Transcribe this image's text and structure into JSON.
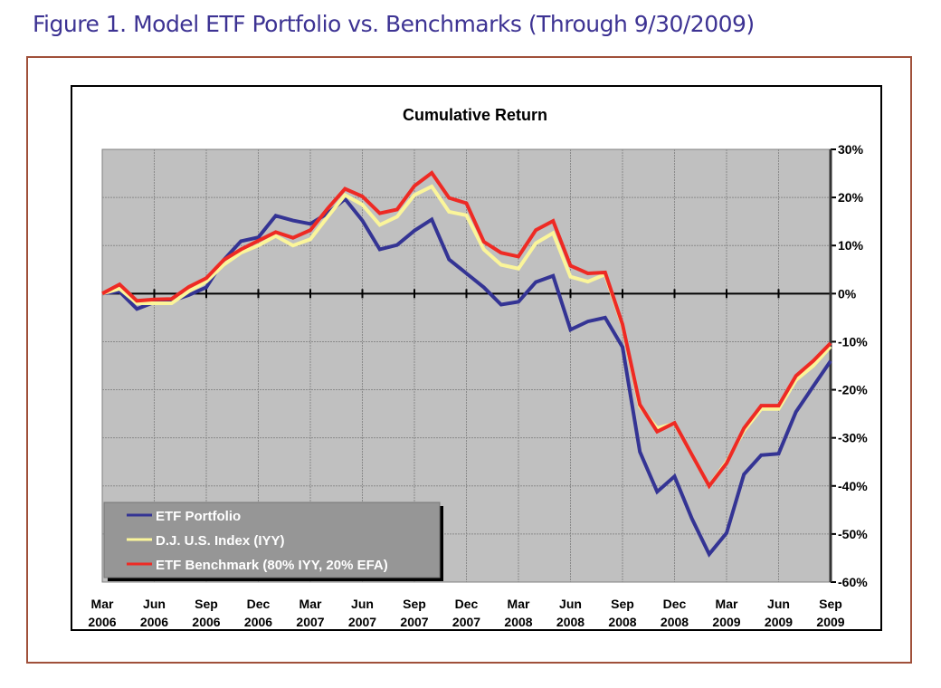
{
  "figure_title": "Figure 1. Model ETF Portfolio vs. Benchmarks (Through 9/30/2009)",
  "chart_data": {
    "type": "line",
    "title": "Cumulative Return",
    "xlabel": "",
    "ylabel": "",
    "ylim": [
      -60,
      30
    ],
    "y_ticks": [
      30,
      20,
      10,
      0,
      -10,
      -20,
      -30,
      -40,
      -50,
      -60
    ],
    "y_tick_labels": [
      "30%",
      "20%",
      "10%",
      "0%",
      "-10%",
      "-20%",
      "-30%",
      "-40%",
      "-50%",
      "-60%"
    ],
    "y_axis_side": "right",
    "x_tick_labels": [
      [
        "Mar",
        "2006"
      ],
      [
        "Jun",
        "2006"
      ],
      [
        "Sep",
        "2006"
      ],
      [
        "Dec",
        "2006"
      ],
      [
        "Mar",
        "2007"
      ],
      [
        "Jun",
        "2007"
      ],
      [
        "Sep",
        "2007"
      ],
      [
        "Dec",
        "2007"
      ],
      [
        "Mar",
        "2008"
      ],
      [
        "Jun",
        "2008"
      ],
      [
        "Sep",
        "2008"
      ],
      [
        "Dec",
        "2008"
      ],
      [
        "Mar",
        "2009"
      ],
      [
        "Jun",
        "2009"
      ],
      [
        "Sep",
        "2009"
      ]
    ],
    "x": [
      "2006-03",
      "2006-04",
      "2006-05",
      "2006-06",
      "2006-07",
      "2006-08",
      "2006-09",
      "2006-10",
      "2006-11",
      "2006-12",
      "2007-01",
      "2007-02",
      "2007-03",
      "2007-04",
      "2007-05",
      "2007-06",
      "2007-07",
      "2007-08",
      "2007-09",
      "2007-10",
      "2007-11",
      "2007-12",
      "2008-01",
      "2008-02",
      "2008-03",
      "2008-04",
      "2008-05",
      "2008-06",
      "2008-07",
      "2008-08",
      "2008-09",
      "2008-10",
      "2008-11",
      "2008-12",
      "2009-01",
      "2009-02",
      "2009-03",
      "2009-04",
      "2009-05",
      "2009-06",
      "2009-07",
      "2009-08",
      "2009-09"
    ],
    "grid": true,
    "legend_placement": "bottom-left",
    "background_color": "#c0c0c0",
    "series": [
      {
        "name": "ETF Portfolio",
        "color": "#343494",
        "values": [
          0,
          0.4,
          -3.2,
          -1.8,
          -1.5,
          -0.3,
          1.3,
          7,
          10.9,
          11.7,
          16.2,
          15.2,
          14.5,
          16.7,
          19.7,
          15.2,
          9.2,
          10.1,
          13.1,
          15.4,
          7.1,
          4.2,
          1.3,
          -2.3,
          -1.7,
          2.4,
          3.7,
          -7.5,
          -5.8,
          -5,
          -11.1,
          -32.9,
          -41.2,
          -38,
          -46.8,
          -54.2,
          -49.8,
          -37.6,
          -33.6,
          -33.3,
          -24.6,
          -19.3,
          -14
        ]
      },
      {
        "name": "D.J. U.S. Index (IYY)",
        "color": "#fbf59a",
        "values": [
          0,
          1,
          -2,
          -2,
          -2,
          0.5,
          2.5,
          6,
          8.5,
          10,
          12,
          10,
          11.3,
          16,
          20.5,
          18.5,
          14.3,
          16,
          20.5,
          22.3,
          17,
          16.3,
          9.2,
          6,
          5.2,
          10.5,
          12.6,
          3.5,
          2.5,
          4,
          -6.6,
          -23.5,
          -28,
          -27,
          -33.5,
          -40,
          -35,
          -28.5,
          -24,
          -24,
          -18,
          -15,
          -11
        ]
      },
      {
        "name": "ETF Benchmark (80% IYY, 20% EFA)",
        "color": "#ee2a24",
        "values": [
          0,
          1.9,
          -1.5,
          -1.2,
          -1.1,
          1.4,
          3.2,
          7,
          9.2,
          11,
          12.8,
          11.6,
          13.2,
          17.7,
          21.8,
          20.2,
          16.7,
          17.5,
          22.4,
          25.1,
          19.9,
          18.8,
          10.8,
          8.5,
          7.7,
          13.2,
          15.1,
          5.8,
          4.2,
          4.4,
          -6.4,
          -23.1,
          -28.7,
          -26.9,
          -33.5,
          -40,
          -35.3,
          -28,
          -23.3,
          -23.3,
          -17.1,
          -14,
          -10.3
        ]
      }
    ]
  }
}
